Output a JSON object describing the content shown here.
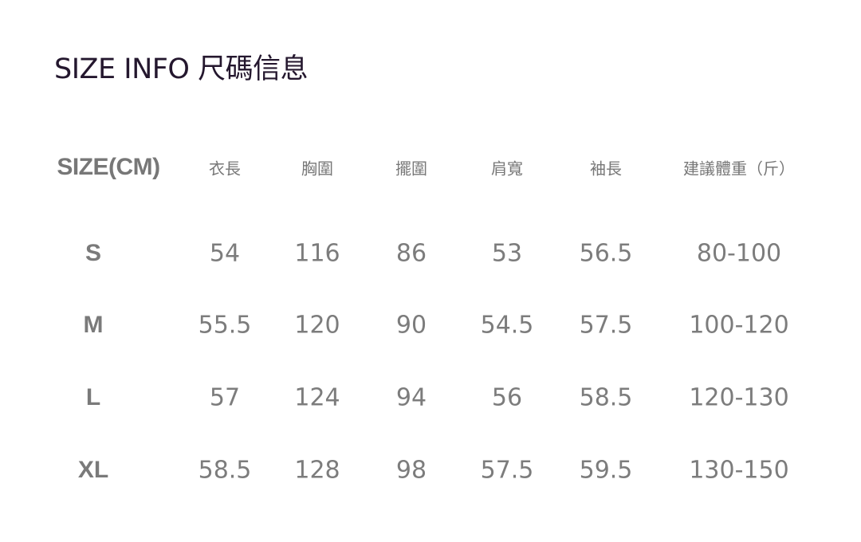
{
  "title": "SIZE INFO 尺碼信息",
  "table": {
    "headers": [
      "SIZE(CM)",
      "衣長",
      "胸圍",
      "擺圍",
      "肩寬",
      "袖長",
      "建議體重（斤）"
    ],
    "rows": [
      [
        "S",
        "54",
        "116",
        "86",
        "53",
        "56.5",
        "80-100"
      ],
      [
        "M",
        "55.5",
        "120",
        "90",
        "54.5",
        "57.5",
        "100-120"
      ],
      [
        "L",
        "57",
        "124",
        "94",
        "56",
        "58.5",
        "120-130"
      ],
      [
        "XL",
        "58.5",
        "128",
        "98",
        "57.5",
        "59.5",
        "130-150"
      ]
    ]
  }
}
